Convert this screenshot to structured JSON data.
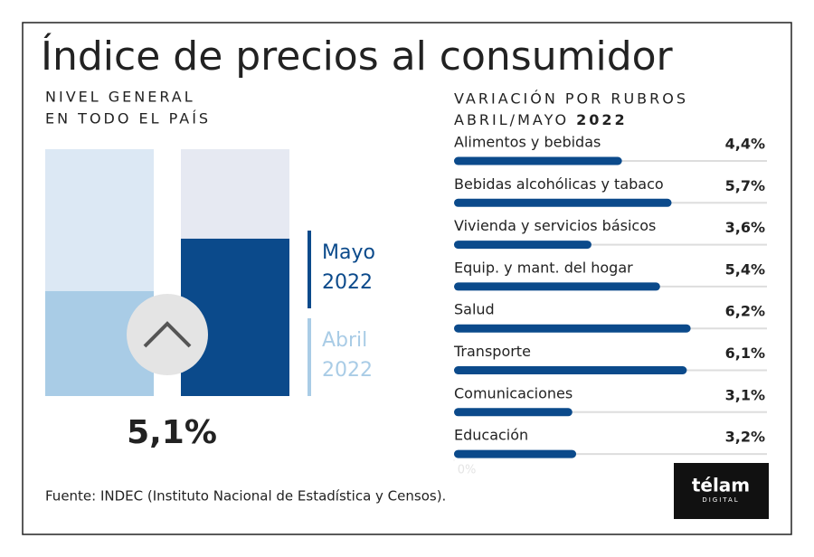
{
  "title": "Índice de precios al consumidor",
  "source": "Fuente: INDEC (Instituto Nacional de Estadística y Censos).",
  "logo": {
    "name": "télam",
    "tagline": "DIGITAL"
  },
  "chart_data": [
    {
      "type": "bar",
      "subtitle": [
        "NIVEL GENERAL",
        "EN TODO EL PAÍS"
      ],
      "ylim": [
        0,
        8
      ],
      "series": [
        {
          "name": "Abril 2022",
          "color": "#a9cce6",
          "track": "#dce8f4",
          "values": [
            3.4
          ]
        },
        {
          "name": "Mayo 2022",
          "color": "#0b4a8b",
          "track": "#e6e9f2",
          "values": [
            5.1
          ],
          "value_labels": [
            "5,1%"
          ]
        }
      ]
    },
    {
      "type": "hbar",
      "subtitle": [
        "VARIACIÓN POR RUBROS",
        "ABRIL/MAYO",
        "2022"
      ],
      "categories": [
        "Alimentos y bebidas",
        "Bebidas alcohólicas y tabaco",
        "Vivienda y servicios básicos",
        "Equip. y mant. del hogar",
        "Salud",
        "Transporte",
        "Comunicaciones",
        "Educación"
      ],
      "values": [
        4.4,
        5.7,
        3.6,
        5.4,
        6.2,
        6.1,
        3.1,
        3.2
      ],
      "value_labels": [
        "4,4%",
        "5,7%",
        "3,6%",
        "5,4%",
        "6,2%",
        "6,1%",
        "3,1%",
        "3,2%"
      ],
      "color": "#0b4a8b",
      "xlim": [
        0,
        8.2
      ],
      "xticks": [
        {
          "value": 0,
          "label": "0%"
        }
      ]
    }
  ]
}
